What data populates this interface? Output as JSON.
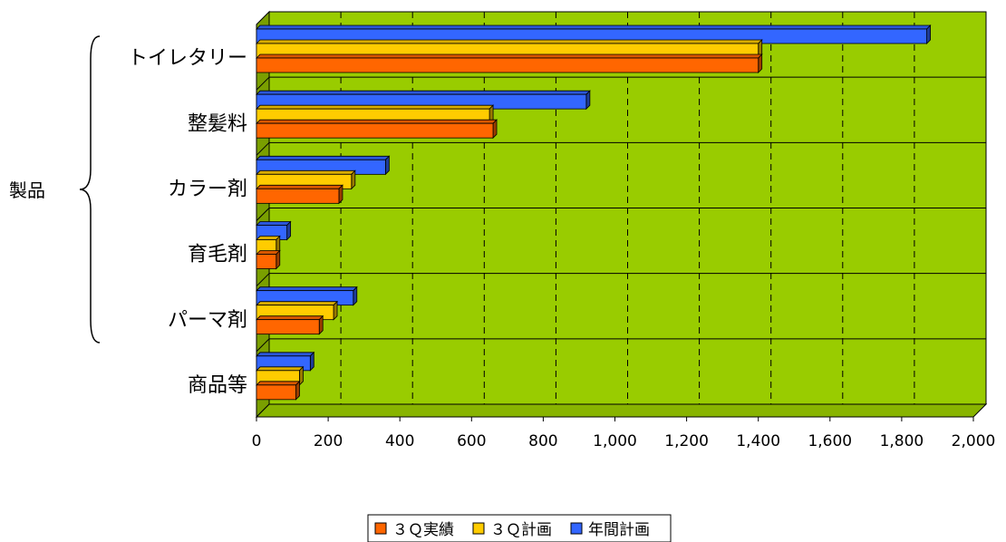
{
  "chart_data": {
    "type": "bar",
    "orientation": "horizontal",
    "categories": [
      "トイレタリー",
      "整髪料",
      "カラー剤",
      "育毛剤",
      "パーマ剤",
      "商品等"
    ],
    "group_label": "製品",
    "group_categories": [
      "トイレタリー",
      "整髪料",
      "カラー剤",
      "育毛剤",
      "パーマ剤"
    ],
    "series": [
      {
        "name": "３Ｑ実績",
        "values": [
          1400,
          660,
          230,
          55,
          175,
          110
        ],
        "color": "#ff6600"
      },
      {
        "name": "３Ｑ計画",
        "values": [
          1400,
          650,
          265,
          55,
          215,
          120
        ],
        "color": "#ffcc00"
      },
      {
        "name": "年間計画",
        "values": [
          1870,
          920,
          360,
          85,
          270,
          150
        ],
        "color": "#3366ff"
      }
    ],
    "xlim": [
      0,
      2000
    ],
    "xticks": [
      0,
      200,
      400,
      600,
      800,
      1000,
      1200,
      1400,
      1600,
      1800,
      2000
    ],
    "xtick_labels": [
      "0",
      "200",
      "400",
      "600",
      "800",
      "1,000",
      "1,200",
      "1,400",
      "1,600",
      "1,800",
      "2,000"
    ],
    "plot_background": "#99cc00",
    "grid": true,
    "legend_position": "bottom",
    "title": "",
    "xlabel": "",
    "ylabel": ""
  }
}
